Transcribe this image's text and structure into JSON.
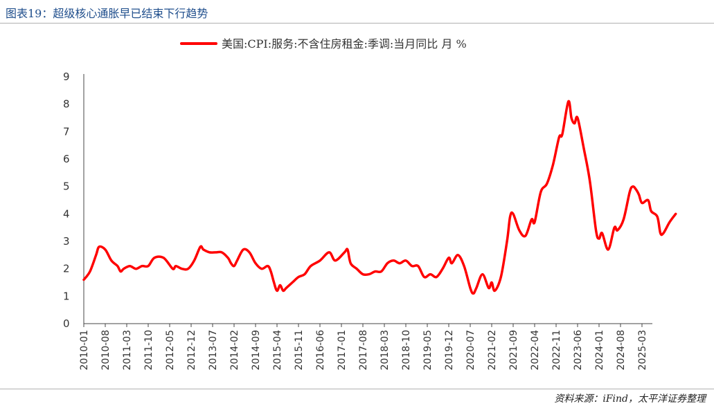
{
  "header": {
    "title": "图表19：超级核心通胀早已结束下行趋势"
  },
  "footer": {
    "source": "资料来源：iFind，太平洋证券整理"
  },
  "chart_data": {
    "type": "line",
    "series_color": "#ff0000",
    "legend_position": "top-center",
    "grid": false,
    "ylim": [
      0,
      9
    ],
    "yticks": [
      "0",
      "1",
      "2",
      "3",
      "4",
      "5",
      "6",
      "7",
      "8",
      "9"
    ],
    "xticks": [
      "2010-01",
      "2010-08",
      "2011-03",
      "2011-10",
      "2012-05",
      "2012-12",
      "2013-07",
      "2014-02",
      "2014-09",
      "2015-04",
      "2015-11",
      "2016-06",
      "2017-01",
      "2017-08",
      "2018-03",
      "2018-10",
      "2019-05",
      "2019-12",
      "2020-07",
      "2021-02",
      "2021-09",
      "2022-04",
      "2022-11",
      "2023-06",
      "2024-01",
      "2024-08",
      "2025-03"
    ],
    "series": [
      {
        "name": "美国:CPI:服务:不含住房租金:季调:当月同比 月 %",
        "points": [
          [
            "2010-01",
            1.6
          ],
          [
            "2010-03",
            1.9
          ],
          [
            "2010-05",
            2.5
          ],
          [
            "2010-06",
            2.8
          ],
          [
            "2010-08",
            2.7
          ],
          [
            "2010-10",
            2.3
          ],
          [
            "2010-12",
            2.1
          ],
          [
            "2011-01",
            1.9
          ],
          [
            "2011-02",
            2.0
          ],
          [
            "2011-04",
            2.1
          ],
          [
            "2011-06",
            2.0
          ],
          [
            "2011-08",
            2.1
          ],
          [
            "2011-10",
            2.1
          ],
          [
            "2011-12",
            2.4
          ],
          [
            "2012-03",
            2.4
          ],
          [
            "2012-06",
            2.0
          ],
          [
            "2012-07",
            2.1
          ],
          [
            "2012-09",
            2.0
          ],
          [
            "2012-11",
            2.0
          ],
          [
            "2013-01",
            2.3
          ],
          [
            "2013-03",
            2.8
          ],
          [
            "2013-04",
            2.7
          ],
          [
            "2013-06",
            2.6
          ],
          [
            "2013-08",
            2.6
          ],
          [
            "2013-10",
            2.6
          ],
          [
            "2013-12",
            2.4
          ],
          [
            "2014-01",
            2.2
          ],
          [
            "2014-02",
            2.1
          ],
          [
            "2014-03",
            2.3
          ],
          [
            "2014-05",
            2.7
          ],
          [
            "2014-07",
            2.6
          ],
          [
            "2014-09",
            2.2
          ],
          [
            "2014-11",
            2.0
          ],
          [
            "2015-01",
            2.1
          ],
          [
            "2015-02",
            1.9
          ],
          [
            "2015-03",
            1.5
          ],
          [
            "2015-04",
            1.2
          ],
          [
            "2015-05",
            1.4
          ],
          [
            "2015-06",
            1.2
          ],
          [
            "2015-07",
            1.3
          ],
          [
            "2015-09",
            1.5
          ],
          [
            "2015-11",
            1.7
          ],
          [
            "2016-01",
            1.8
          ],
          [
            "2016-03",
            2.1
          ],
          [
            "2016-06",
            2.3
          ],
          [
            "2016-09",
            2.6
          ],
          [
            "2016-11",
            2.3
          ],
          [
            "2017-02",
            2.6
          ],
          [
            "2017-03",
            2.7
          ],
          [
            "2017-04",
            2.2
          ],
          [
            "2017-06",
            2.0
          ],
          [
            "2017-08",
            1.8
          ],
          [
            "2017-10",
            1.8
          ],
          [
            "2017-12",
            1.9
          ],
          [
            "2018-02",
            1.9
          ],
          [
            "2018-04",
            2.2
          ],
          [
            "2018-06",
            2.3
          ],
          [
            "2018-08",
            2.2
          ],
          [
            "2018-10",
            2.3
          ],
          [
            "2018-12",
            2.1
          ],
          [
            "2019-02",
            2.1
          ],
          [
            "2019-04",
            1.7
          ],
          [
            "2019-06",
            1.8
          ],
          [
            "2019-08",
            1.7
          ],
          [
            "2019-10",
            2.0
          ],
          [
            "2019-12",
            2.4
          ],
          [
            "2020-01",
            2.2
          ],
          [
            "2020-03",
            2.5
          ],
          [
            "2020-05",
            2.1
          ],
          [
            "2020-07",
            1.3
          ],
          [
            "2020-08",
            1.1
          ],
          [
            "2020-09",
            1.3
          ],
          [
            "2020-11",
            1.8
          ],
          [
            "2021-01",
            1.3
          ],
          [
            "2021-02",
            1.5
          ],
          [
            "2021-03",
            1.2
          ],
          [
            "2021-05",
            1.7
          ],
          [
            "2021-07",
            3.0
          ],
          [
            "2021-08",
            3.9
          ],
          [
            "2021-09",
            4.0
          ],
          [
            "2021-11",
            3.4
          ],
          [
            "2022-01",
            3.2
          ],
          [
            "2022-03",
            3.8
          ],
          [
            "2022-04",
            3.7
          ],
          [
            "2022-06",
            4.8
          ],
          [
            "2022-08",
            5.1
          ],
          [
            "2022-10",
            5.8
          ],
          [
            "2022-12",
            6.8
          ],
          [
            "2023-01",
            6.9
          ],
          [
            "2023-03",
            8.1
          ],
          [
            "2023-04",
            7.5
          ],
          [
            "2023-05",
            7.3
          ],
          [
            "2023-06",
            7.5
          ],
          [
            "2023-08",
            6.4
          ],
          [
            "2023-10",
            5.2
          ],
          [
            "2023-12",
            3.4
          ],
          [
            "2024-01",
            3.1
          ],
          [
            "2024-02",
            3.3
          ],
          [
            "2024-04",
            2.7
          ],
          [
            "2024-06",
            3.5
          ],
          [
            "2024-07",
            3.4
          ],
          [
            "2024-09",
            3.8
          ],
          [
            "2024-11",
            4.8
          ],
          [
            "2024-12",
            5.0
          ],
          [
            "2025-01",
            4.9
          ],
          [
            "2025-02",
            4.7
          ],
          [
            "2025-03",
            4.4
          ],
          [
            "2025-05",
            4.5
          ],
          [
            "2025-06",
            4.1
          ],
          [
            "2025-08",
            3.9
          ],
          [
            "2025-09",
            3.3
          ],
          [
            "2025-10",
            3.3
          ],
          [
            "2025-12",
            3.7
          ],
          [
            "2026-02",
            4.0
          ]
        ]
      }
    ]
  }
}
